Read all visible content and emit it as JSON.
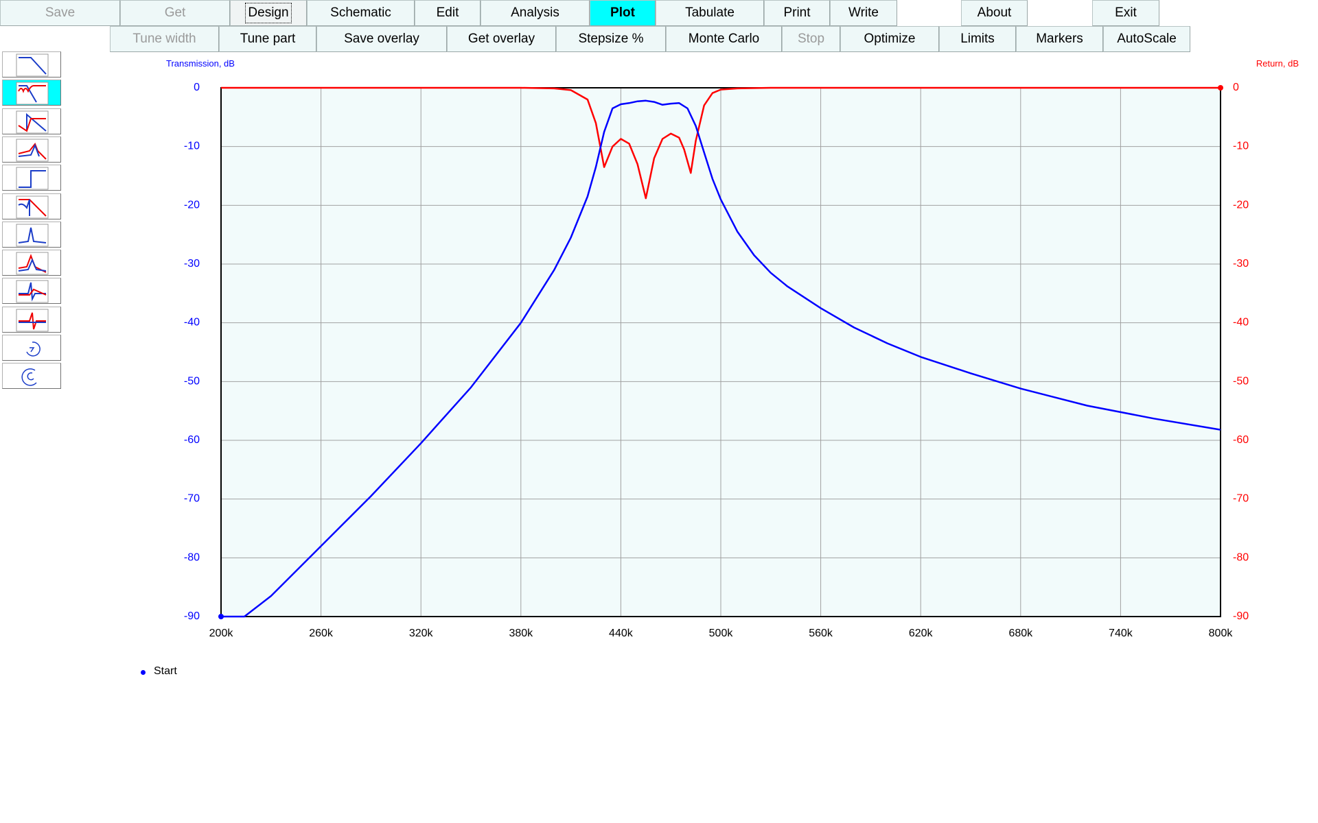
{
  "toolbar_row1": [
    {
      "name": "save-button",
      "label": "Save",
      "state": "disabled"
    },
    {
      "name": "get-button",
      "label": "Get",
      "state": "disabled"
    },
    {
      "name": "design-button",
      "label": "Design",
      "state": "focused"
    },
    {
      "name": "schematic-button",
      "label": "Schematic",
      "state": "normal"
    },
    {
      "name": "edit-button",
      "label": "Edit",
      "state": "normal"
    },
    {
      "name": "analysis-button",
      "label": "Analysis",
      "state": "normal"
    },
    {
      "name": "plot-button",
      "label": "Plot",
      "state": "active"
    },
    {
      "name": "tabulate-button",
      "label": "Tabulate",
      "state": "normal"
    },
    {
      "name": "print-button",
      "label": "Print",
      "state": "normal"
    },
    {
      "name": "write-button",
      "label": "Write",
      "state": "normal"
    },
    {
      "name": "about-button",
      "label": "About",
      "state": "normal"
    },
    {
      "name": "exit-button",
      "label": "Exit",
      "state": "normal"
    }
  ],
  "toolbar_row2": [
    {
      "name": "tune-width-button",
      "label": "Tune width",
      "state": "disabled"
    },
    {
      "name": "tune-part-button",
      "label": "Tune part",
      "state": "normal"
    },
    {
      "name": "save-overlay-button",
      "label": "Save overlay",
      "state": "normal"
    },
    {
      "name": "get-overlay-button",
      "label": "Get overlay",
      "state": "normal"
    },
    {
      "name": "stepsize-button",
      "label": "Stepsize %",
      "state": "normal"
    },
    {
      "name": "monte-carlo-button",
      "label": "Monte Carlo",
      "state": "normal"
    },
    {
      "name": "stop-button",
      "label": "Stop",
      "state": "disabled"
    },
    {
      "name": "optimize-button",
      "label": "Optimize",
      "state": "normal"
    },
    {
      "name": "limits-button",
      "label": "Limits",
      "state": "normal"
    },
    {
      "name": "markers-button",
      "label": "Markers",
      "state": "normal"
    },
    {
      "name": "autoscale-button",
      "label": "AutoScale",
      "state": "normal"
    }
  ],
  "sidebar": {
    "selected_index": 1,
    "items": [
      {
        "name": "plot-type-lowpass-icon"
      },
      {
        "name": "plot-type-trans-return-icon"
      },
      {
        "name": "plot-type-highpass-return-icon"
      },
      {
        "name": "plot-type-peak-return-icon"
      },
      {
        "name": "plot-type-step-icon"
      },
      {
        "name": "plot-type-group-delay-icon"
      },
      {
        "name": "plot-type-peak-icon"
      },
      {
        "name": "plot-type-peak-overlay-icon"
      },
      {
        "name": "plot-type-impulse-icon"
      },
      {
        "name": "plot-type-phase-icon"
      },
      {
        "name": "smith-chart-icon"
      },
      {
        "name": "polar-chart-icon"
      }
    ]
  },
  "colors": {
    "transmission": "#0000ff",
    "return": "#ff0000",
    "active_button": "#00ffff",
    "plot_background": "#f2fbfb",
    "grid": "#a0a0a0"
  },
  "chart_data": {
    "type": "line",
    "title": "",
    "y_left_label": "Transmission, dB",
    "y_right_label": "Return, dB",
    "xlim": [
      200000,
      800000
    ],
    "ylim": [
      -90,
      0
    ],
    "x_ticks": [
      "200k",
      "260k",
      "320k",
      "380k",
      "440k",
      "500k",
      "560k",
      "620k",
      "680k",
      "740k",
      "800k"
    ],
    "y_ticks": [
      "0",
      "-10",
      "-20",
      "-30",
      "-40",
      "-50",
      "-60",
      "-70",
      "-80",
      "-90"
    ],
    "grid": true,
    "series": [
      {
        "name": "Transmission",
        "axis": "left",
        "color": "#0000ff",
        "x": [
          200000,
          214000,
          230000,
          260000,
          290000,
          320000,
          350000,
          380000,
          400000,
          410000,
          420000,
          425000,
          430000,
          435000,
          440000,
          445000,
          450000,
          455000,
          460000,
          465000,
          470000,
          475000,
          480000,
          485000,
          490000,
          495000,
          500000,
          510000,
          520000,
          530000,
          540000,
          560000,
          580000,
          600000,
          620000,
          650000,
          680000,
          720000,
          760000,
          800000
        ],
        "y": [
          -90,
          -90,
          -86.5,
          -78,
          -69.5,
          -60.5,
          -51,
          -40,
          -31,
          -25.5,
          -18.5,
          -13.5,
          -7.5,
          -3.5,
          -2.8,
          -2.6,
          -2.3,
          -2.2,
          -2.4,
          -2.9,
          -2.7,
          -2.6,
          -3.5,
          -6.5,
          -11,
          -15.5,
          -19,
          -24.5,
          -28.5,
          -31.5,
          -33.8,
          -37.5,
          -40.8,
          -43.5,
          -45.8,
          -48.6,
          -51.2,
          -54.1,
          -56.3,
          -58.2
        ]
      },
      {
        "name": "Return",
        "axis": "right",
        "color": "#ff0000",
        "x": [
          200000,
          380000,
          400000,
          410000,
          420000,
          425000,
          430000,
          435000,
          440000,
          445000,
          450000,
          455000,
          460000,
          465000,
          470000,
          475000,
          478000,
          482000,
          485000,
          490000,
          495000,
          500000,
          510000,
          530000,
          800000
        ],
        "y": [
          0,
          0,
          -0.1,
          -0.4,
          -2,
          -6,
          -13.5,
          -10,
          -8.7,
          -9.5,
          -13,
          -18.8,
          -12,
          -8.7,
          -7.8,
          -8.5,
          -10.5,
          -14.5,
          -9,
          -3,
          -0.9,
          -0.3,
          -0.1,
          0,
          0
        ]
      }
    ],
    "legend": [
      {
        "label": "Start",
        "color": "#0000ff"
      }
    ]
  }
}
